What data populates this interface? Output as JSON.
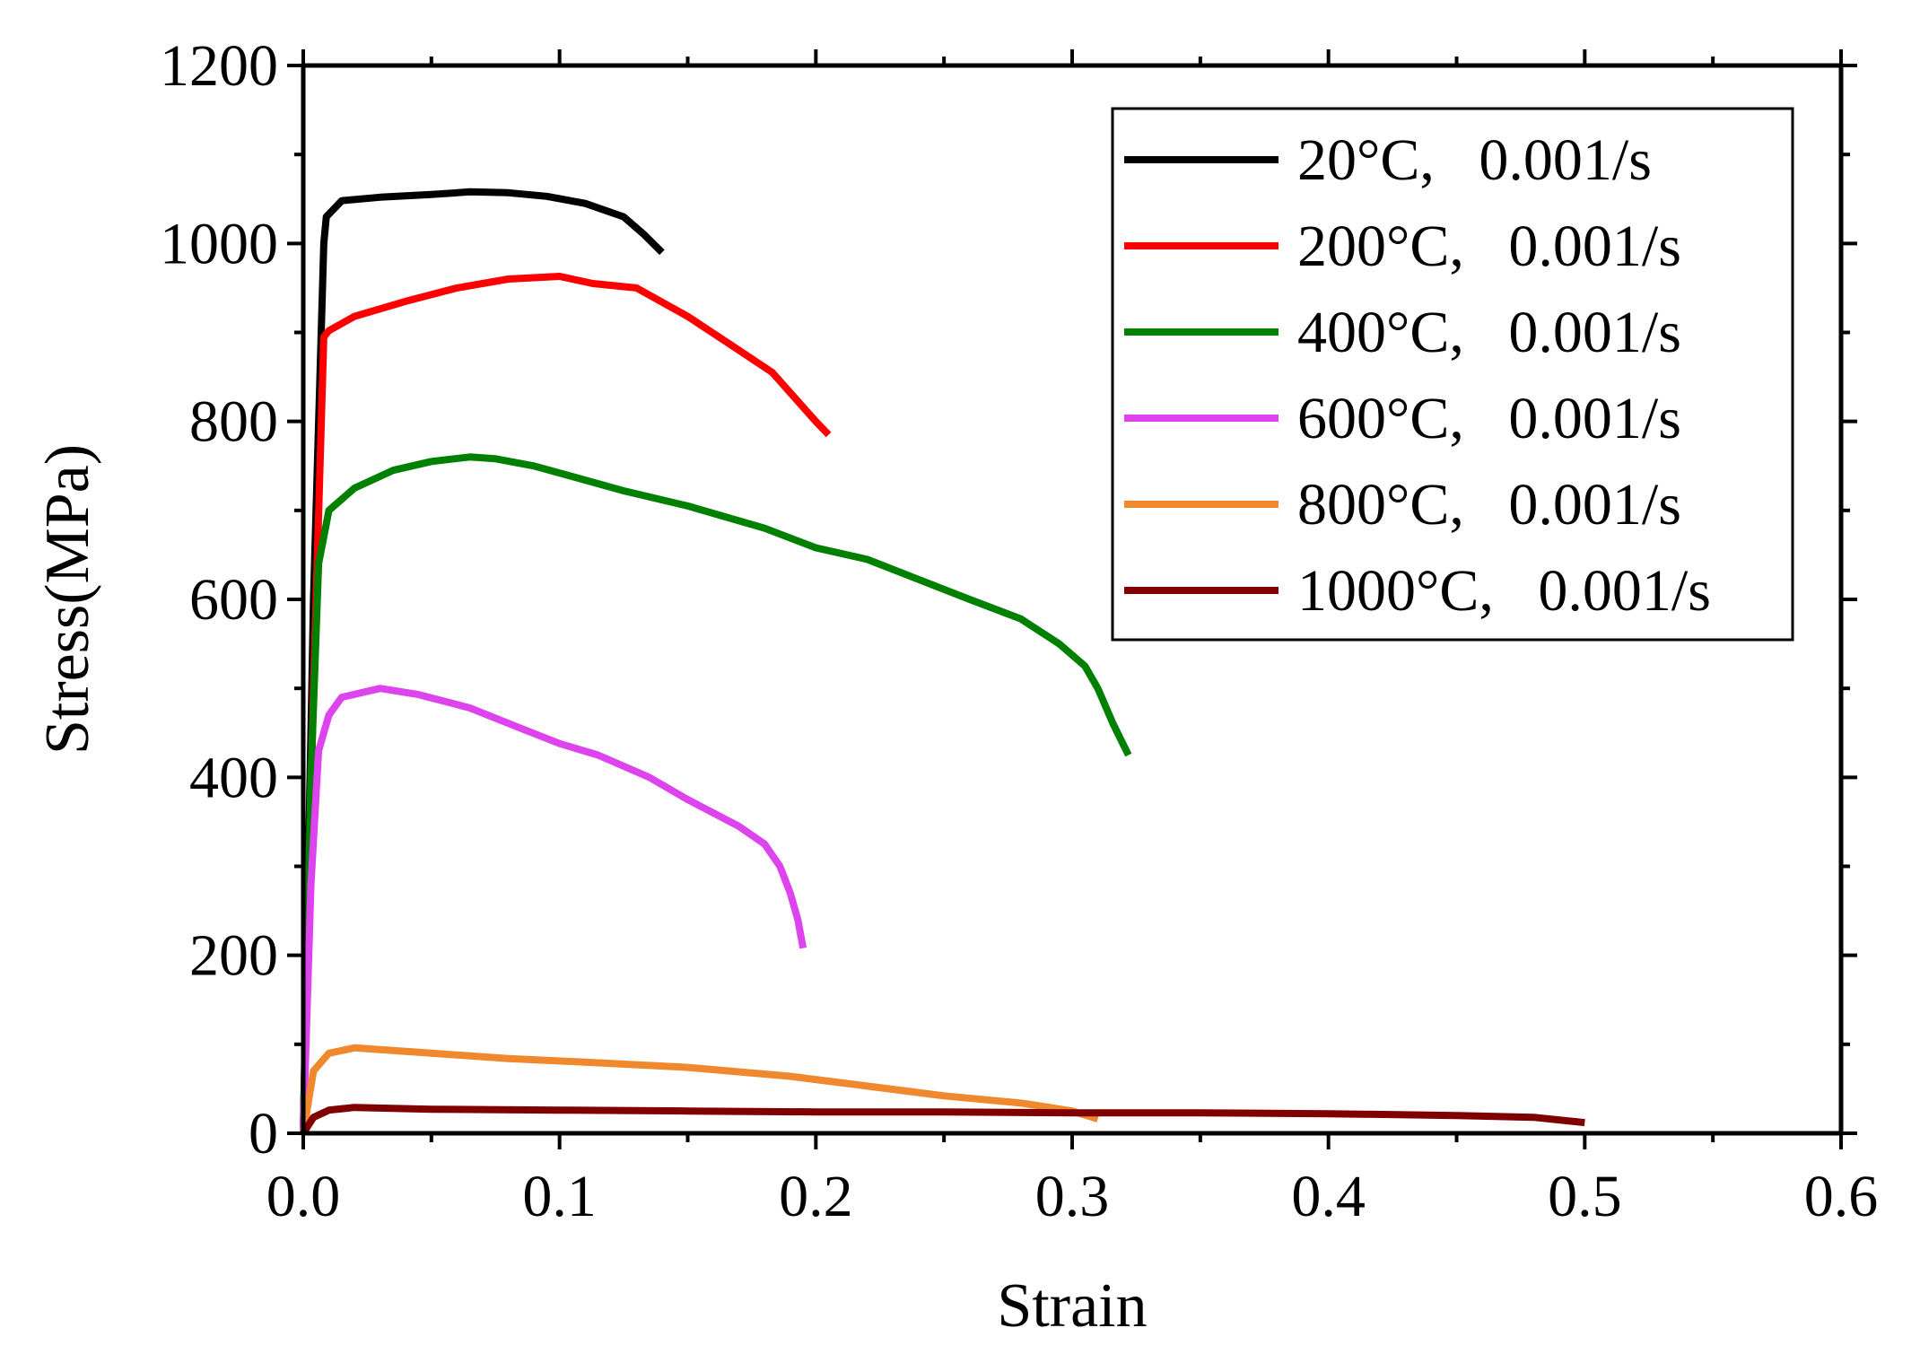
{
  "chart_data": {
    "type": "line",
    "title": "",
    "xlabel": "Strain",
    "ylabel": "Stress(MPa)",
    "xlim": [
      0.0,
      0.6
    ],
    "ylim": [
      0,
      1200
    ],
    "xticks": [
      0.0,
      0.1,
      0.2,
      0.3,
      0.4,
      0.5,
      0.6
    ],
    "xtick_labels": [
      "0.0",
      "0.1",
      "0.2",
      "0.3",
      "0.4",
      "0.5",
      "0.6"
    ],
    "yticks": [
      0,
      200,
      400,
      600,
      800,
      1000,
      1200
    ],
    "ytick_labels": [
      "0",
      "200",
      "400",
      "600",
      "800",
      "1000",
      "1200"
    ],
    "grid": false,
    "legend_position": "top-right",
    "series": [
      {
        "name": "20°C,   0.001/s",
        "color": "#000000",
        "x": [
          0,
          0.004,
          0.008,
          0.009,
          0.015,
          0.03,
          0.05,
          0.065,
          0.08,
          0.095,
          0.11,
          0.125,
          0.133,
          0.14
        ],
        "y": [
          0,
          600,
          1000,
          1030,
          1048,
          1052,
          1055,
          1058,
          1057,
          1053,
          1045,
          1030,
          1010,
          990
        ]
      },
      {
        "name": "200°C,   0.001/s",
        "color": "#ff0000",
        "x": [
          0,
          0.004,
          0.008,
          0.01,
          0.02,
          0.04,
          0.06,
          0.08,
          0.1,
          0.113,
          0.13,
          0.15,
          0.17,
          0.183,
          0.2,
          0.205
        ],
        "y": [
          0,
          500,
          895,
          902,
          918,
          935,
          950,
          960,
          963,
          955,
          950,
          918,
          880,
          855,
          800,
          785
        ]
      },
      {
        "name": "400°C,   0.001/s",
        "color": "#008000",
        "x": [
          0,
          0.003,
          0.006,
          0.01,
          0.02,
          0.035,
          0.05,
          0.065,
          0.075,
          0.09,
          0.105,
          0.125,
          0.15,
          0.18,
          0.2,
          0.22,
          0.26,
          0.28,
          0.295,
          0.305,
          0.31,
          0.316,
          0.322
        ],
        "y": [
          0,
          400,
          640,
          700,
          725,
          745,
          755,
          760,
          758,
          750,
          738,
          722,
          705,
          680,
          658,
          645,
          600,
          578,
          550,
          525,
          500,
          460,
          425
        ]
      },
      {
        "name": "600°C,   0.001/s",
        "color": "#dd44ee",
        "x": [
          0,
          0.003,
          0.006,
          0.01,
          0.015,
          0.03,
          0.045,
          0.065,
          0.085,
          0.1,
          0.115,
          0.135,
          0.15,
          0.17,
          0.18,
          0.186,
          0.19,
          0.193,
          0.195
        ],
        "y": [
          0,
          280,
          430,
          470,
          490,
          500,
          493,
          478,
          455,
          438,
          425,
          400,
          375,
          345,
          325,
          300,
          270,
          240,
          208
        ]
      },
      {
        "name": "800°C,   0.001/s",
        "color": "#f0882e",
        "x": [
          0,
          0.004,
          0.01,
          0.02,
          0.05,
          0.08,
          0.11,
          0.15,
          0.19,
          0.22,
          0.25,
          0.28,
          0.3,
          0.31
        ],
        "y": [
          0,
          70,
          90,
          96,
          90,
          84,
          80,
          74,
          64,
          53,
          42,
          34,
          25,
          16
        ]
      },
      {
        "name": "1000°C,   0.001/s",
        "color": "#800000",
        "x": [
          0,
          0.004,
          0.01,
          0.02,
          0.05,
          0.1,
          0.15,
          0.2,
          0.25,
          0.3,
          0.35,
          0.4,
          0.45,
          0.48,
          0.5
        ],
        "y": [
          0,
          18,
          26,
          29,
          27,
          26,
          25,
          24,
          24,
          23,
          23,
          22,
          20,
          18,
          12
        ]
      }
    ]
  }
}
